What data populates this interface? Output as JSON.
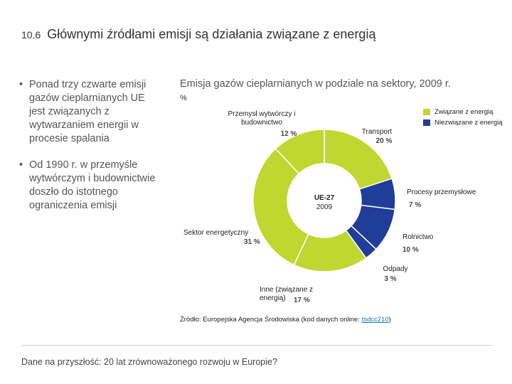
{
  "slide": {
    "number": "10.6",
    "title": "Głównymi źródłami emisji są działania związane z energią"
  },
  "bullets": [
    "Ponad trzy czwarte emisji gazów cieplarnianych UE jest związanych z wytwarzaniem energii w procesie spalania",
    "Od 1990 r. w przemyśle wytwórczym i budownictwie doszło do istotnego ograniczenia emisji"
  ],
  "chart_data": {
    "type": "pie",
    "title": "Emisja gazów cieplarnianych w podziale na sektory, 2009 r.",
    "unit": "%",
    "center_label": "UE-27",
    "center_sublabel": "2009",
    "slices": [
      {
        "name": "Transport",
        "value_label": "20 %",
        "value": 20,
        "group": "energy"
      },
      {
        "name": "Procesy przemysłowe",
        "value_label": "7 %",
        "value": 7,
        "group": "non_energy"
      },
      {
        "name": "Rolnictwo",
        "value_label": "10 %",
        "value": 10,
        "group": "non_energy"
      },
      {
        "name": "Odpady",
        "value_label": "3 %",
        "value": 3,
        "group": "non_energy"
      },
      {
        "name": "Inne (związane z energią)",
        "value_label": "17 %",
        "value": 17,
        "group": "energy"
      },
      {
        "name": "Sektor energetyczny",
        "value_label": "31 %",
        "value": 31,
        "group": "energy"
      },
      {
        "name": "Przemysł wytwórczy i budownictwo",
        "value_label": "12 %",
        "value": 12,
        "group": "energy"
      }
    ],
    "legend": [
      {
        "label": "Związane z energią",
        "color": "#bfd730"
      },
      {
        "label": "Niezwiązane z energią",
        "color": "#1f3d99"
      }
    ]
  },
  "source": {
    "prefix": "Źródło: Europejska Agencja Środowiska (kod danych online: ",
    "link": "tsdcc210",
    "suffix": ")"
  },
  "footer": "Dane na przyszłość: 20 lat zrównoważonego rozwoju w Europie?"
}
